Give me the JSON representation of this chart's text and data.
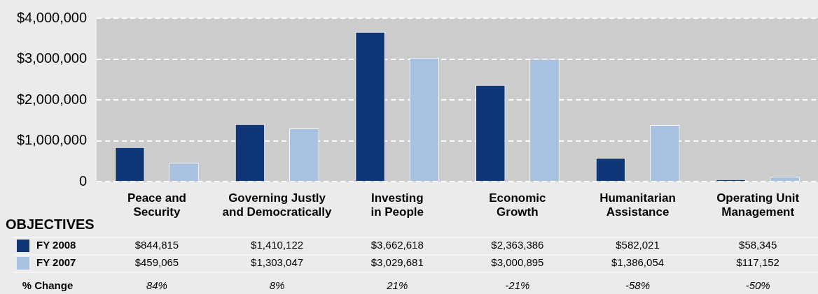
{
  "chart_data": {
    "type": "bar",
    "xlabel": "OBJECTIVES",
    "categories": [
      "Peace and Security",
      "Governing Justly and Democratically",
      "Investing in People",
      "Economic Growth",
      "Humanitarian Assistance",
      "Operating Unit Management"
    ],
    "series": [
      {
        "name": "FY 2008",
        "color": "#0f3778",
        "values": [
          844815,
          1410122,
          3662618,
          2363386,
          582021,
          58345
        ],
        "value_labels": [
          "$844,815",
          "$1,410,122",
          "$3,662,618",
          "$2,363,386",
          "$582,021",
          "$58,345"
        ]
      },
      {
        "name": "FY 2007",
        "color": "#a8c1e0",
        "values": [
          459065,
          1303047,
          3029681,
          3000895,
          1386054,
          117152
        ],
        "value_labels": [
          "$459,065",
          "$1,303,047",
          "$3,029,681",
          "$3,000,895",
          "$1,386,054",
          "$117,152"
        ]
      }
    ],
    "annotations": [
      "% Change",
      "84%",
      "8%",
      "21%",
      "-21%",
      "-58%",
      "-50%"
    ],
    "ylim": [
      0,
      4000000
    ],
    "yticks": [
      {
        "value": 0,
        "label": "0"
      },
      {
        "value": 1000000,
        "label": "$1,000,000"
      },
      {
        "value": 2000000,
        "label": "$2,000,000"
      },
      {
        "value": 3000000,
        "label": "$3,000,000"
      },
      {
        "value": 4000000,
        "label": "$4,000,000"
      }
    ],
    "grid": "y",
    "legend": "bottom left"
  }
}
